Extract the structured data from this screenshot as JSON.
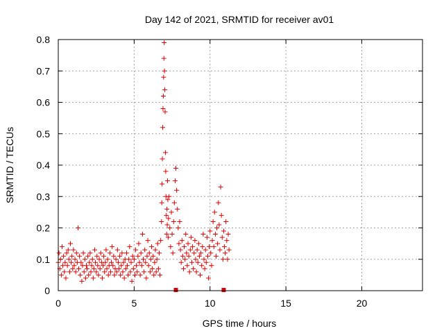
{
  "chart_data": {
    "type": "scatter",
    "title": "Day 142 of 2021, SRMTID for receiver av01",
    "xlabel": "GPS time / hours",
    "ylabel": "SRMTID / TECUs",
    "xlim": [
      0,
      24
    ],
    "ylim": [
      0,
      0.8
    ],
    "xticks": [
      0,
      5,
      10,
      15,
      20
    ],
    "yticks": [
      0,
      0.1,
      0.2,
      0.3,
      0.4,
      0.5,
      0.6,
      0.7,
      0.8
    ],
    "xtick_labels": [
      "0",
      "5",
      "10",
      "15",
      "20"
    ],
    "ytick_labels": [
      "0",
      "0.1",
      "0.2",
      "0.3",
      "0.4",
      "0.5",
      "0.6",
      "0.7",
      "0.8"
    ],
    "grid": true,
    "marker": "plus",
    "color": "#e00000",
    "series": [
      {
        "name": "SRMTID",
        "points": [
          [
            0.0,
            0.09
          ],
          [
            0.05,
            0.12
          ],
          [
            0.1,
            0.07
          ],
          [
            0.15,
            0.1
          ],
          [
            0.2,
            0.05
          ],
          [
            0.25,
            0.14
          ],
          [
            0.3,
            0.08
          ],
          [
            0.35,
            0.11
          ],
          [
            0.4,
            0.06
          ],
          [
            0.45,
            0.09
          ],
          [
            0.5,
            0.04
          ],
          [
            0.55,
            0.12
          ],
          [
            0.6,
            0.08
          ],
          [
            0.65,
            0.13
          ],
          [
            0.7,
            0.1
          ],
          [
            0.75,
            0.06
          ],
          [
            0.8,
            0.15
          ],
          [
            0.85,
            0.09
          ],
          [
            0.9,
            0.11
          ],
          [
            0.95,
            0.07
          ],
          [
            1.0,
            0.13
          ],
          [
            1.05,
            0.08
          ],
          [
            1.1,
            0.1
          ],
          [
            1.15,
            0.06
          ],
          [
            1.2,
            0.12
          ],
          [
            1.25,
            0.09
          ],
          [
            1.3,
            0.2
          ],
          [
            1.35,
            0.07
          ],
          [
            1.4,
            0.11
          ],
          [
            1.45,
            0.05
          ],
          [
            1.5,
            0.09
          ],
          [
            1.55,
            0.03
          ],
          [
            1.6,
            0.08
          ],
          [
            1.65,
            0.12
          ],
          [
            1.7,
            0.06
          ],
          [
            1.75,
            0.1
          ],
          [
            1.8,
            0.04
          ],
          [
            1.85,
            0.08
          ],
          [
            1.9,
            0.07
          ],
          [
            1.95,
            0.11
          ],
          [
            2.0,
            0.05
          ],
          [
            2.05,
            0.09
          ],
          [
            2.1,
            0.12
          ],
          [
            2.15,
            0.06
          ],
          [
            2.2,
            0.08
          ],
          [
            2.25,
            0.1
          ],
          [
            2.3,
            0.04
          ],
          [
            2.35,
            0.07
          ],
          [
            2.4,
            0.13
          ],
          [
            2.45,
            0.09
          ],
          [
            2.5,
            0.06
          ],
          [
            2.55,
            0.11
          ],
          [
            2.6,
            0.08
          ],
          [
            2.65,
            0.05
          ],
          [
            2.7,
            0.1
          ],
          [
            2.75,
            0.07
          ],
          [
            2.8,
            0.12
          ],
          [
            2.85,
            0.09
          ],
          [
            2.9,
            0.04
          ],
          [
            2.95,
            0.08
          ],
          [
            3.0,
            0.11
          ],
          [
            3.05,
            0.06
          ],
          [
            3.1,
            0.09
          ],
          [
            3.15,
            0.13
          ],
          [
            3.2,
            0.07
          ],
          [
            3.25,
            0.1
          ],
          [
            3.3,
            0.05
          ],
          [
            3.35,
            0.08
          ],
          [
            3.4,
            0.12
          ],
          [
            3.45,
            0.06
          ],
          [
            3.5,
            0.09
          ],
          [
            3.55,
            0.14
          ],
          [
            3.6,
            0.08
          ],
          [
            3.65,
            0.11
          ],
          [
            3.7,
            0.05
          ],
          [
            3.75,
            0.07
          ],
          [
            3.8,
            0.1
          ],
          [
            3.85,
            0.06
          ],
          [
            3.9,
            0.13
          ],
          [
            3.95,
            0.09
          ],
          [
            4.0,
            0.07
          ],
          [
            4.05,
            0.11
          ],
          [
            4.1,
            0.05
          ],
          [
            4.15,
            0.08
          ],
          [
            4.2,
            0.12
          ],
          [
            4.25,
            0.06
          ],
          [
            4.3,
            0.09
          ],
          [
            4.35,
            0.04
          ],
          [
            4.4,
            0.1
          ],
          [
            4.45,
            0.07
          ],
          [
            4.5,
            0.12
          ],
          [
            4.55,
            0.08
          ],
          [
            4.6,
            0.05
          ],
          [
            4.65,
            0.1
          ],
          [
            4.7,
            0.14
          ],
          [
            4.75,
            0.06
          ],
          [
            4.8,
            0.09
          ],
          [
            4.85,
            0.03
          ],
          [
            4.9,
            0.11
          ],
          [
            4.95,
            0.07
          ],
          [
            5.0,
            0.1
          ],
          [
            5.05,
            0.05
          ],
          [
            5.1,
            0.13
          ],
          [
            5.15,
            0.08
          ],
          [
            5.2,
            0.06
          ],
          [
            5.25,
            0.11
          ],
          [
            5.3,
            0.15
          ],
          [
            5.35,
            0.09
          ],
          [
            5.4,
            0.05
          ],
          [
            5.45,
            0.12
          ],
          [
            5.5,
            0.08
          ],
          [
            5.55,
            0.18
          ],
          [
            5.6,
            0.1
          ],
          [
            5.65,
            0.06
          ],
          [
            5.7,
            0.13
          ],
          [
            5.75,
            0.09
          ],
          [
            5.8,
            0.04
          ],
          [
            5.85,
            0.11
          ],
          [
            5.9,
            0.16
          ],
          [
            5.95,
            0.08
          ],
          [
            6.0,
            0.12
          ],
          [
            6.05,
            0.06
          ],
          [
            6.1,
            0.1
          ],
          [
            6.15,
            0.14
          ],
          [
            6.2,
            0.07
          ],
          [
            6.25,
            0.11
          ],
          [
            6.3,
            0.05
          ],
          [
            6.35,
            0.09
          ],
          [
            6.4,
            0.13
          ],
          [
            6.45,
            0.06
          ],
          [
            6.5,
            0.1
          ],
          [
            6.55,
            0.15
          ],
          [
            6.6,
            0.07
          ],
          [
            6.65,
            0.12
          ],
          [
            6.7,
            0.05
          ],
          [
            6.75,
            0.16
          ],
          [
            6.8,
            0.22
          ],
          [
            6.82,
            0.28
          ],
          [
            6.84,
            0.34
          ],
          [
            6.86,
            0.42
          ],
          [
            6.88,
            0.52
          ],
          [
            6.9,
            0.58
          ],
          [
            6.92,
            0.62
          ],
          [
            6.94,
            0.68
          ],
          [
            6.96,
            0.74
          ],
          [
            6.98,
            0.79
          ],
          [
            7.0,
            0.7
          ],
          [
            7.02,
            0.64
          ],
          [
            7.04,
            0.57
          ],
          [
            7.06,
            0.44
          ],
          [
            7.08,
            0.38
          ],
          [
            7.1,
            0.3
          ],
          [
            7.12,
            0.24
          ],
          [
            7.14,
            0.18
          ],
          [
            7.16,
            0.26
          ],
          [
            7.18,
            0.21
          ],
          [
            7.2,
            0.35
          ],
          [
            7.22,
            0.29
          ],
          [
            7.24,
            0.17
          ],
          [
            7.26,
            0.23
          ],
          [
            7.3,
            0.3
          ],
          [
            7.35,
            0.2
          ],
          [
            7.4,
            0.14
          ],
          [
            7.45,
            0.25
          ],
          [
            7.5,
            0.18
          ],
          [
            7.55,
            0.12
          ],
          [
            7.6,
            0.22
          ],
          [
            7.65,
            0.28
          ],
          [
            7.7,
            0.35
          ],
          [
            7.75,
            0.39
          ],
          [
            7.8,
            0.32
          ],
          [
            7.85,
            0.26
          ],
          [
            7.9,
            0.2
          ],
          [
            7.95,
            0.15
          ],
          [
            8.0,
            0.22
          ],
          [
            8.05,
            0.13
          ],
          [
            8.1,
            0.09
          ],
          [
            8.15,
            0.16
          ],
          [
            8.2,
            0.11
          ],
          [
            8.25,
            0.07
          ],
          [
            8.3,
            0.14
          ],
          [
            8.35,
            0.1
          ],
          [
            8.4,
            0.18
          ],
          [
            8.45,
            0.12
          ],
          [
            8.5,
            0.08
          ],
          [
            8.55,
            0.15
          ],
          [
            8.6,
            0.11
          ],
          [
            8.65,
            0.06
          ],
          [
            8.7,
            0.13
          ],
          [
            8.75,
            0.17
          ],
          [
            8.8,
            0.09
          ],
          [
            8.85,
            0.14
          ],
          [
            8.9,
            0.07
          ],
          [
            8.95,
            0.12
          ],
          [
            9.0,
            0.16
          ],
          [
            9.05,
            0.1
          ],
          [
            9.1,
            0.06
          ],
          [
            9.15,
            0.13
          ],
          [
            9.2,
            0.09
          ],
          [
            9.25,
            0.15
          ],
          [
            9.3,
            0.11
          ],
          [
            9.35,
            0.05
          ],
          [
            9.4,
            0.12
          ],
          [
            9.45,
            0.08
          ],
          [
            9.5,
            0.14
          ],
          [
            9.55,
            0.18
          ],
          [
            9.6,
            0.1
          ],
          [
            9.65,
            0.07
          ],
          [
            9.7,
            0.13
          ],
          [
            9.75,
            0.09
          ],
          [
            9.8,
            0.17
          ],
          [
            9.85,
            0.11
          ],
          [
            9.9,
            0.04
          ],
          [
            9.95,
            0.14
          ],
          [
            10.0,
            0.19
          ],
          [
            10.05,
            0.12
          ],
          [
            10.1,
            0.08
          ],
          [
            10.15,
            0.16
          ],
          [
            10.2,
            0.22
          ],
          [
            10.25,
            0.14
          ],
          [
            10.3,
            0.25
          ],
          [
            10.35,
            0.18
          ],
          [
            10.4,
            0.11
          ],
          [
            10.45,
            0.2
          ],
          [
            10.5,
            0.15
          ],
          [
            10.55,
            0.28
          ],
          [
            10.6,
            0.21
          ],
          [
            10.65,
            0.13
          ],
          [
            10.7,
            0.33
          ],
          [
            10.75,
            0.24
          ],
          [
            10.8,
            0.17
          ],
          [
            10.85,
            0.1
          ],
          [
            10.9,
            0.19
          ],
          [
            10.95,
            0.14
          ],
          [
            11.0,
            0.12
          ],
          [
            11.05,
            0.22
          ],
          [
            11.1,
            0.16
          ],
          [
            11.15,
            0.1
          ],
          [
            11.2,
            0.18
          ],
          [
            11.25,
            0.13
          ]
        ]
      }
    ],
    "baseline_markers": [
      7.75,
      10.9
    ]
  }
}
